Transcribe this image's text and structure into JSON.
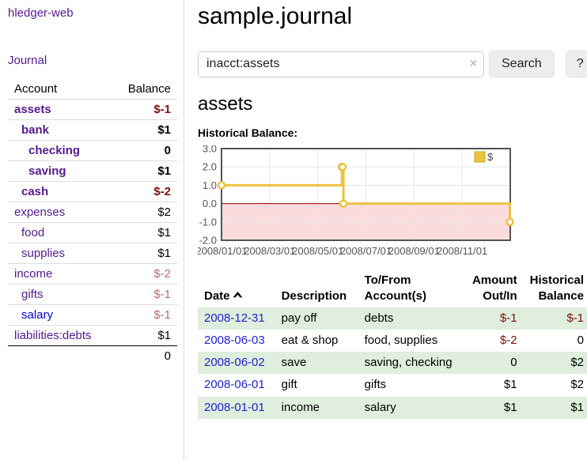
{
  "brand": "hledger-web",
  "nav": {
    "journal": "Journal"
  },
  "accounts_panel": {
    "headers": {
      "account": "Account",
      "balance": "Balance"
    },
    "rows": [
      {
        "name": "assets",
        "balance": "$-1",
        "indent": 1,
        "bold": true,
        "balance_style": "neg-strong",
        "link": "visited"
      },
      {
        "name": "bank",
        "balance": "$1",
        "indent": 2,
        "bold": true,
        "balance_style": "pos",
        "link": "visited"
      },
      {
        "name": "checking",
        "balance": "0",
        "indent": 3,
        "bold": true,
        "balance_style": "pos",
        "link": "visited"
      },
      {
        "name": "saving",
        "balance": "$1",
        "indent": 3,
        "bold": true,
        "balance_style": "pos",
        "link": "visited"
      },
      {
        "name": "cash",
        "balance": "$-2",
        "indent": 2,
        "bold": true,
        "balance_style": "neg-strong",
        "link": "visited"
      },
      {
        "name": "expenses",
        "balance": "$2",
        "indent": 1,
        "bold": false,
        "balance_style": "pos",
        "link": "visited"
      },
      {
        "name": "food",
        "balance": "$1",
        "indent": 2,
        "bold": false,
        "balance_style": "pos",
        "link": "visited"
      },
      {
        "name": "supplies",
        "balance": "$1",
        "indent": 2,
        "bold": false,
        "balance_style": "pos",
        "link": "visited"
      },
      {
        "name": "income",
        "balance": "$-2",
        "indent": 1,
        "bold": false,
        "balance_style": "neg-weak",
        "link": "visited"
      },
      {
        "name": "gifts",
        "balance": "$-1",
        "indent": 2,
        "bold": false,
        "balance_style": "neg-weak",
        "link": "visited"
      },
      {
        "name": "salary",
        "balance": "$-1",
        "indent": 2,
        "bold": false,
        "balance_style": "neg-weak",
        "link": "unvisited"
      },
      {
        "name": "liabilities:debts",
        "balance": "$1",
        "indent": 1,
        "bold": false,
        "balance_style": "pos",
        "link": "visited"
      }
    ],
    "total": "0"
  },
  "header": {
    "title": "sample.journal"
  },
  "search": {
    "value": "inacct:assets",
    "clear_glyph": "×",
    "button_label": "Search",
    "help_label": "?"
  },
  "account_page": {
    "heading": "assets",
    "chart_title": "Historical Balance:"
  },
  "chart_data": {
    "type": "line",
    "style": "step",
    "title": "Historical Balance of assets",
    "series": [
      {
        "name": "$",
        "color": "#edc240",
        "points": [
          [
            "2008-01-01",
            1
          ],
          [
            "2008-06-01",
            2
          ],
          [
            "2008-06-02",
            2
          ],
          [
            "2008-06-03",
            0
          ],
          [
            "2008-12-31",
            -1
          ]
        ]
      }
    ],
    "x_ticks": [
      "2008/01/01",
      "2008/03/01",
      "2008/05/01",
      "2008/07/01",
      "2008/09/01",
      "2008/11/01"
    ],
    "x_tick_months": [
      0,
      2,
      4,
      6,
      8,
      10
    ],
    "xlim_months": [
      0,
      12
    ],
    "y_ticks": [
      "3.0",
      "2.0",
      "1.0",
      "0.0",
      "-1.0",
      "-2.0"
    ],
    "y_tick_values": [
      3,
      2,
      1,
      0,
      -1,
      -2
    ],
    "ylim": [
      -2,
      3
    ],
    "grid": true,
    "legend": {
      "label": "$",
      "position": "top-right"
    },
    "colors": {
      "line": "#edc240",
      "marker_fill": "#ffffff",
      "negative_region": "#fbdcdc",
      "zero_line": "#8b0000",
      "gridline": "#e6e6e6",
      "plot_border": "#545454",
      "tick_label": "#545454"
    }
  },
  "register": {
    "headers": {
      "date": "Date",
      "description": "Description",
      "accounts": "To/From Account(s)",
      "amount": "Amount Out/In",
      "balance": "Historical Balance"
    },
    "sort_direction": "ascending",
    "rows": [
      {
        "date": "2008-12-31",
        "description": "pay off",
        "accounts": "debts",
        "amount": "$-1",
        "balance": "$-1",
        "amount_neg": true,
        "balance_neg": true
      },
      {
        "date": "2008-06-03",
        "description": "eat & shop",
        "accounts": "food, supplies",
        "amount": "$-2",
        "balance": "0",
        "amount_neg": true,
        "balance_neg": false
      },
      {
        "date": "2008-06-02",
        "description": "save",
        "accounts": "saving, checking",
        "amount": "0",
        "balance": "$2",
        "amount_neg": false,
        "balance_neg": false
      },
      {
        "date": "2008-06-01",
        "description": "gift",
        "accounts": "gifts",
        "amount": "$1",
        "balance": "$2",
        "amount_neg": false,
        "balance_neg": false
      },
      {
        "date": "2008-01-01",
        "description": "income",
        "accounts": "salary",
        "amount": "$1",
        "balance": "$1",
        "amount_neg": false,
        "balance_neg": false
      }
    ]
  }
}
